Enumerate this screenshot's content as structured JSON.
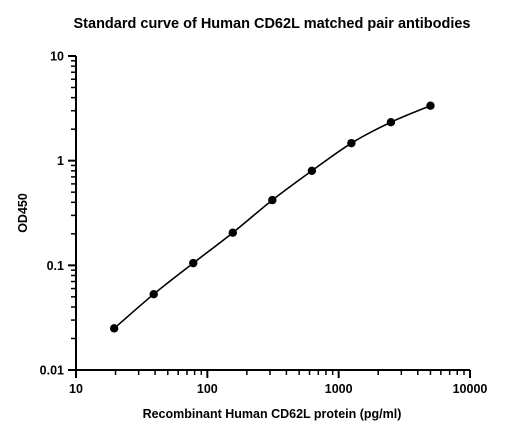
{
  "chart_data": {
    "type": "scatter",
    "title": "Standard curve of Human CD62L matched pair antibodies",
    "xlabel": "Recombinant Human CD62L protein (pg/ml)",
    "ylabel": "OD450",
    "x_scale": "log",
    "y_scale": "log",
    "xlim": [
      10,
      10000
    ],
    "ylim": [
      0.01,
      10
    ],
    "x_ticks": [
      10,
      100,
      1000,
      10000
    ],
    "x_tick_labels": [
      "10",
      "100",
      "1000",
      "10000"
    ],
    "y_ticks": [
      0.01,
      0.1,
      1,
      10
    ],
    "y_tick_labels": [
      "0.01",
      "0.1",
      "1",
      "10"
    ],
    "grid": false,
    "legend": "none",
    "fit_line": true,
    "series": [
      {
        "x": [
          19.53,
          39.06,
          78.13,
          156.25,
          312.5,
          625,
          1250,
          2500,
          5000
        ],
        "y": [
          0.025,
          0.053,
          0.105,
          0.205,
          0.42,
          0.8,
          1.47,
          2.33,
          3.35
        ]
      }
    ],
    "colors": {
      "marker": "#000000",
      "line": "#000000",
      "axis": "#000000"
    }
  }
}
